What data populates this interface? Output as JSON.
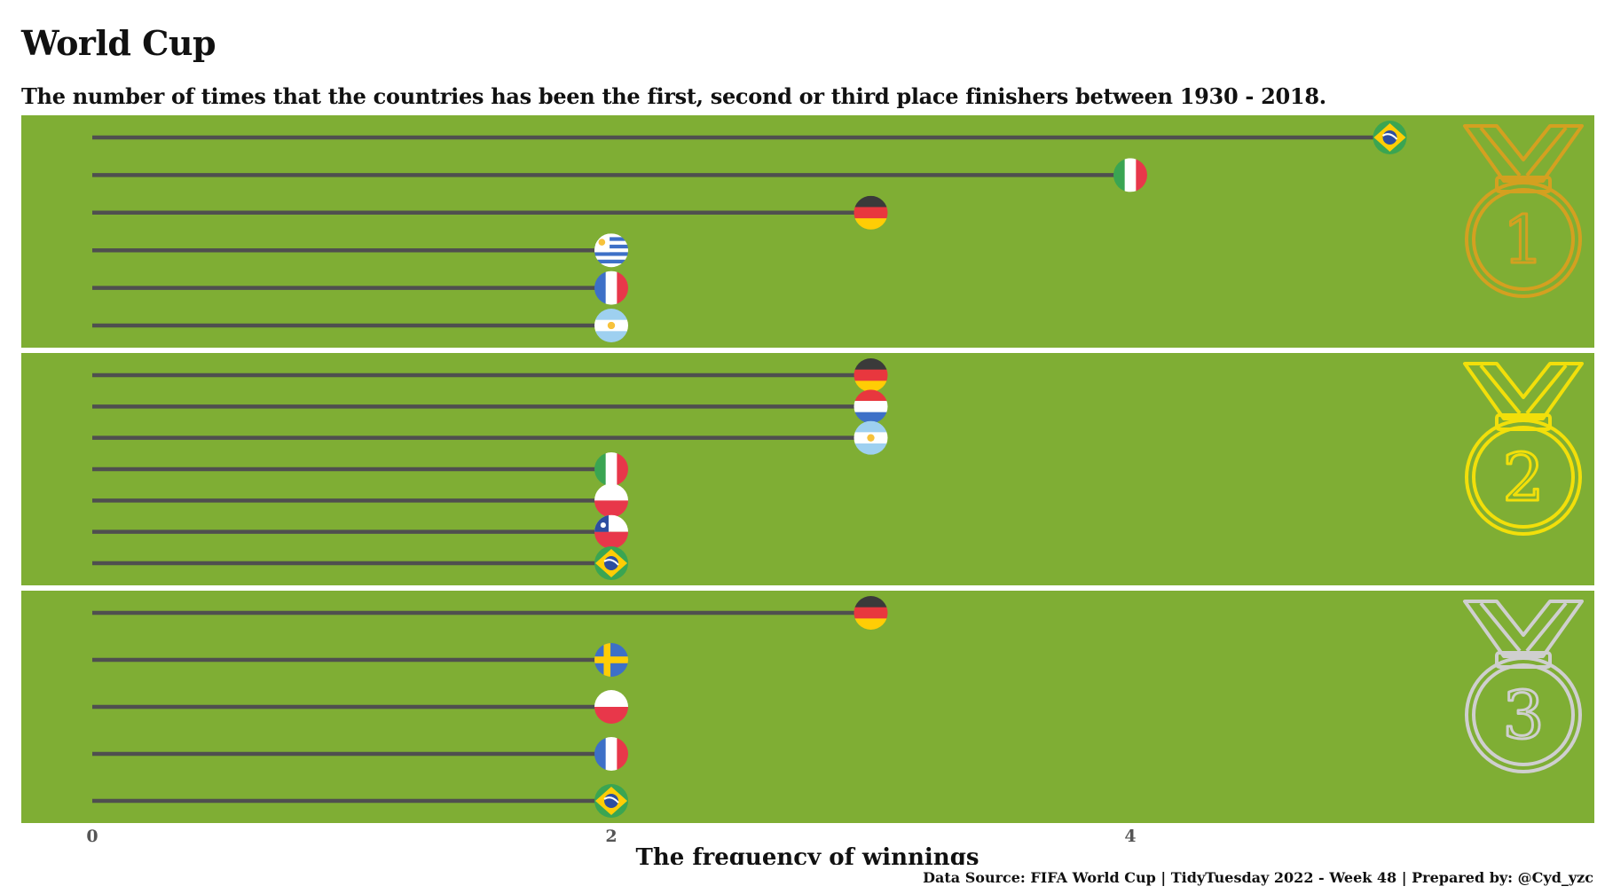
{
  "title": "World Cup",
  "subtitle": "The number of times that the countries has been the first, second or third place finishers between 1930 - 2018.",
  "caption": "Data Source: FIFA World Cup | TidyTuesday 2022 - Week 48 | Prepared by: @Cyd_yzc",
  "colors": {
    "panel": "#7FAE34",
    "segment": "#4F4F4F",
    "gold": "#D4A020",
    "silver_medal": "#F2DF0A",
    "bronze_medal": "#CFCFCF"
  },
  "chart_data": {
    "type": "lollipop",
    "xlabel": "The frequency of winnings",
    "xlim": [
      0,
      5.6
    ],
    "x_ticks": [
      0,
      2,
      4
    ],
    "facets": [
      {
        "medal": "1",
        "medal_color": "#D4A020",
        "points": [
          {
            "country": "Brazil",
            "flag": "brazil",
            "value": 5
          },
          {
            "country": "Italy",
            "flag": "italy",
            "value": 4
          },
          {
            "country": "Germany",
            "flag": "germany",
            "value": 3
          },
          {
            "country": "Uruguay",
            "flag": "uruguay",
            "value": 2
          },
          {
            "country": "France",
            "flag": "france",
            "value": 2
          },
          {
            "country": "Argentina",
            "flag": "argentina",
            "value": 2
          }
        ]
      },
      {
        "medal": "2",
        "medal_color": "#F2DF0A",
        "points": [
          {
            "country": "Germany",
            "flag": "germany",
            "value": 3
          },
          {
            "country": "Netherlands",
            "flag": "netherlands",
            "value": 3
          },
          {
            "country": "Argentina",
            "flag": "argentina",
            "value": 3
          },
          {
            "country": "Italy",
            "flag": "italy",
            "value": 2
          },
          {
            "country": "Poland",
            "flag": "poland",
            "value": 2
          },
          {
            "country": "Chile",
            "flag": "chile",
            "value": 2
          },
          {
            "country": "Brazil",
            "flag": "brazil",
            "value": 2
          }
        ]
      },
      {
        "medal": "3",
        "medal_color": "#CFCFCF",
        "points": [
          {
            "country": "Germany",
            "flag": "germany",
            "value": 3
          },
          {
            "country": "Sweden",
            "flag": "sweden",
            "value": 2
          },
          {
            "country": "Poland",
            "flag": "poland",
            "value": 2
          },
          {
            "country": "France",
            "flag": "france",
            "value": 2
          },
          {
            "country": "Brazil",
            "flag": "brazil",
            "value": 2
          }
        ]
      }
    ]
  }
}
